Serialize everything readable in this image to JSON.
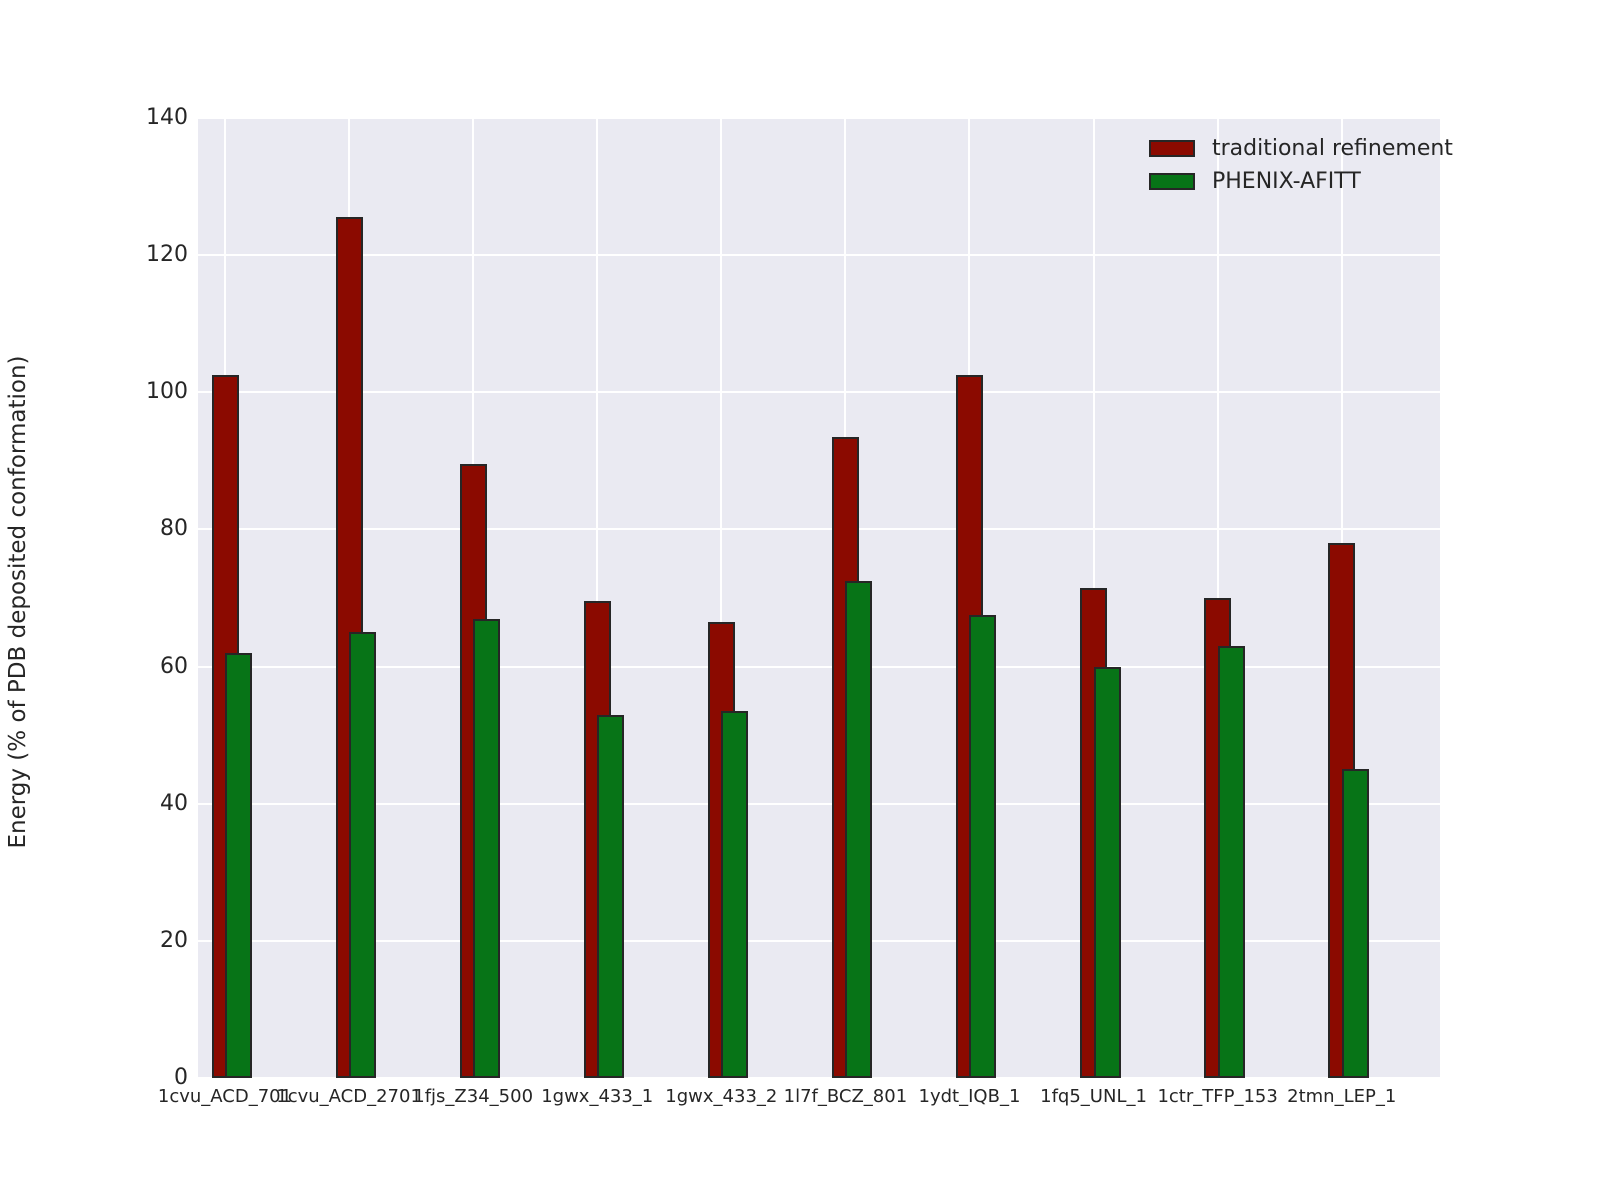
{
  "chart_data": {
    "type": "bar",
    "title": "",
    "xlabel": "",
    "ylabel": "Energy (% of PDB deposited conformation)",
    "categories": [
      "1cvu_ACD_701",
      "1cvu_ACD_2701",
      "1fjs_Z34_500",
      "1gwx_433_1",
      "1gwx_433_2",
      "1l7f_BCZ_801",
      "1ydt_IQB_1",
      "1fq5_UNL_1",
      "1ctr_TFP_153",
      "2tmn_LEP_1"
    ],
    "series": [
      {
        "name": "traditional refinement",
        "color": "#8B0A00",
        "values": [
          102.5,
          125.5,
          89.5,
          69.5,
          66.5,
          93.5,
          102.5,
          71.5,
          70,
          78
        ]
      },
      {
        "name": "PHENIX-AFITT",
        "color": "#077417",
        "values": [
          62,
          65,
          67,
          53,
          53.5,
          72.5,
          67.5,
          60,
          63,
          45
        ]
      }
    ],
    "ylim": [
      0,
      140
    ],
    "yticks": [
      0,
      20,
      40,
      60,
      80,
      100,
      120,
      140
    ],
    "grid": true,
    "legend_position": "upper-right",
    "style": {
      "figure_bg": "#FFFFFF",
      "plot_bg": "#EAEAF2",
      "grid_color": "#FFFFFF",
      "bar_edge_color": "#262626",
      "text_color": "#262626"
    }
  }
}
